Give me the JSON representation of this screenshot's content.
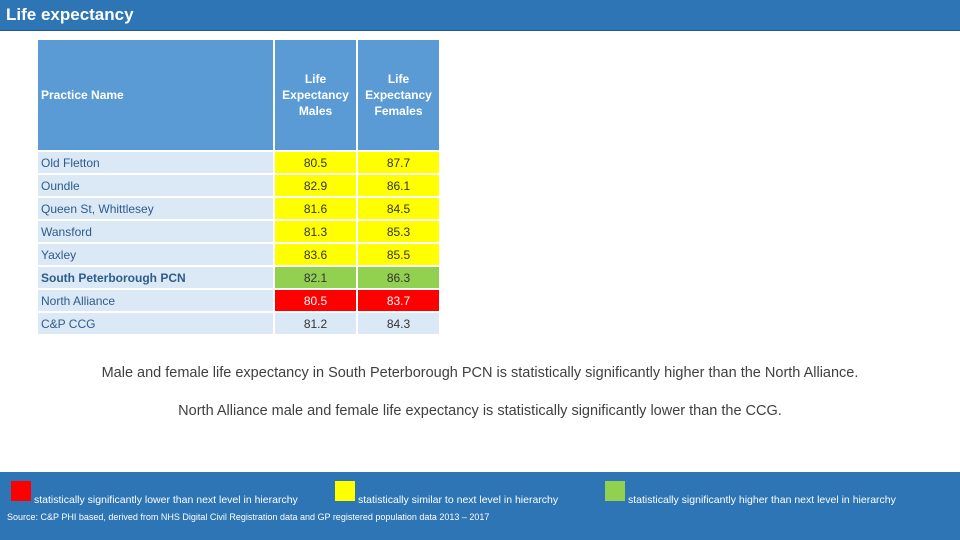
{
  "header": {
    "title": "Life expectancy"
  },
  "table": {
    "columns": [
      "Practice Name",
      "Life Expectancy Males",
      "Life Expectancy Females"
    ],
    "rows": [
      {
        "name": "Old Fletton",
        "male": "80.5",
        "female": "87.7",
        "male_color": "#ffff00",
        "female_color": "#ffff00",
        "bold": false
      },
      {
        "name": "Oundle",
        "male": "82.9",
        "female": "86.1",
        "male_color": "#ffff00",
        "female_color": "#ffff00",
        "bold": false
      },
      {
        "name": "Queen St, Whittlesey",
        "male": "81.6",
        "female": "84.5",
        "male_color": "#ffff00",
        "female_color": "#ffff00",
        "bold": false
      },
      {
        "name": "Wansford",
        "male": "81.3",
        "female": "85.3",
        "male_color": "#ffff00",
        "female_color": "#ffff00",
        "bold": false
      },
      {
        "name": "Yaxley",
        "male": "83.6",
        "female": "85.5",
        "male_color": "#ffff00",
        "female_color": "#ffff00",
        "bold": false
      },
      {
        "name": "South Peterborough PCN",
        "male": "82.1",
        "female": "86.3",
        "male_color": "#92d050",
        "female_color": "#92d050",
        "bold": true
      },
      {
        "name": "North Alliance",
        "male": "80.5",
        "female": "83.7",
        "male_color": "#ff0000",
        "female_color": "#ff0000",
        "bold": false,
        "text_color": "#ffffff"
      },
      {
        "name": "C&P CCG",
        "male": "81.2",
        "female": "84.3",
        "male_color": "#dbe8f5",
        "female_color": "#dbe8f5",
        "bold": false
      }
    ]
  },
  "captions": {
    "line1": "Male and female life expectancy in South Peterborough PCN is statistically significantly higher than the North Alliance.",
    "line2": "North Alliance male and female life expectancy is statistically significantly lower than the CCG."
  },
  "legend": [
    {
      "color": "#ff0000",
      "label": "statistically significantly lower than next level in hierarchy"
    },
    {
      "color": "#ffff00",
      "label": "statistically similar to next level in hierarchy"
    },
    {
      "color": "#92d050",
      "label": "statistically significantly higher than next level in hierarchy"
    }
  ],
  "source": "Source: C&P PHI based, derived from NHS Digital Civil Registration data and GP registered population data 2013 – 2017"
}
